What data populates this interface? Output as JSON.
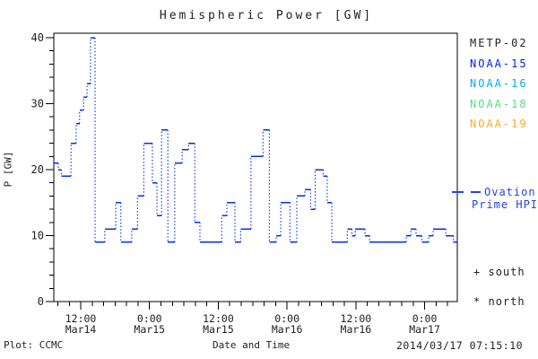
{
  "title": "Hemispheric Power [GW]",
  "colors": {
    "line": "#0033e6",
    "axis": "#000000",
    "text": "#222222",
    "ovation": "#2244dd"
  },
  "y_axis": {
    "label": "P [GW]",
    "ticks": [
      0,
      10,
      20,
      30,
      40
    ],
    "minor_step": 2,
    "range": [
      0,
      40
    ]
  },
  "x_axis": {
    "label": "Date and Time",
    "minor_step_hours": 2,
    "major_ticks": [
      {
        "hour": 12,
        "time": "12:00",
        "date": "Mar14"
      },
      {
        "hour": 24,
        "time": "0:00",
        "date": "Mar15"
      },
      {
        "hour": 36,
        "time": "12:00",
        "date": "Mar15"
      },
      {
        "hour": 48,
        "time": "0:00",
        "date": "Mar16"
      },
      {
        "hour": 60,
        "time": "12:00",
        "date": "Mar16"
      },
      {
        "hour": 72,
        "time": "0:00",
        "date": "Mar17"
      }
    ]
  },
  "legend": {
    "satellites": [
      {
        "label": "METP-02",
        "color": "#222222"
      },
      {
        "label": "NOAA-15",
        "color": "#0022ee"
      },
      {
        "label": "NOAA-16",
        "color": "#00aaff"
      },
      {
        "label": "NOAA-18",
        "color": "#55dd88"
      },
      {
        "label": "NOAA-19",
        "color": "#ffaa22"
      }
    ],
    "ovation": {
      "line1": "Ovation",
      "line2": "Prime HPI"
    },
    "hemisphere_markers": [
      {
        "symbol": "+",
        "label": "south"
      },
      {
        "symbol": "*",
        "label": "north"
      }
    ]
  },
  "footer": {
    "source": "Plot: CCMC",
    "xlabel": "Date and Time",
    "timestamp": "2014/03/17 07:15:10"
  },
  "chart_data": {
    "type": "line",
    "subtype": "step-histogram",
    "title": "Hemispheric Power [GW]",
    "xlabel": "Date and Time",
    "ylabel": "P [GW]",
    "ylim": [
      0,
      40
    ],
    "xlim_hours": [
      7.3,
      77.7
    ],
    "t_unit": "hours since 2014-03-14 00:00 UT",
    "grid": false,
    "legend_position": "right-outside",
    "series": [
      {
        "name": "NOAA-15 Hemispheric Power (Ovation Prime HPI)",
        "unit": "GW",
        "color": "#0033e6",
        "segments": [
          [
            7.3,
            8.1,
            21
          ],
          [
            8.1,
            8.6,
            20
          ],
          [
            8.6,
            10.3,
            19
          ],
          [
            10.3,
            11.2,
            24
          ],
          [
            11.2,
            11.8,
            27
          ],
          [
            11.8,
            12.5,
            29
          ],
          [
            12.5,
            13.1,
            31
          ],
          [
            13.1,
            13.7,
            33
          ],
          [
            13.7,
            14.5,
            40
          ],
          [
            14.5,
            16.2,
            9
          ],
          [
            16.2,
            18.1,
            11
          ],
          [
            18.1,
            19.0,
            15
          ],
          [
            19.0,
            20.9,
            9
          ],
          [
            20.9,
            21.9,
            11
          ],
          [
            21.9,
            23.0,
            16
          ],
          [
            23.0,
            24.5,
            24
          ],
          [
            24.5,
            25.3,
            18
          ],
          [
            25.3,
            26.1,
            13
          ],
          [
            26.1,
            27.2,
            26
          ],
          [
            27.2,
            28.4,
            9
          ],
          [
            28.4,
            29.7,
            21
          ],
          [
            29.7,
            30.8,
            23
          ],
          [
            30.8,
            31.9,
            24
          ],
          [
            31.9,
            32.8,
            12
          ],
          [
            32.8,
            36.6,
            9
          ],
          [
            36.6,
            37.5,
            13
          ],
          [
            37.5,
            38.9,
            15
          ],
          [
            38.9,
            39.9,
            9
          ],
          [
            39.9,
            41.7,
            11
          ],
          [
            41.7,
            43.8,
            22
          ],
          [
            43.8,
            44.9,
            26
          ],
          [
            44.9,
            46.1,
            9
          ],
          [
            46.1,
            46.9,
            10
          ],
          [
            46.9,
            48.5,
            15
          ],
          [
            48.5,
            49.7,
            9
          ],
          [
            49.7,
            51.1,
            16
          ],
          [
            51.1,
            52.1,
            17
          ],
          [
            52.1,
            52.9,
            14
          ],
          [
            52.9,
            54.3,
            20
          ],
          [
            54.3,
            55.0,
            19
          ],
          [
            55.0,
            55.8,
            15
          ],
          [
            55.8,
            58.5,
            9
          ],
          [
            58.5,
            59.3,
            11
          ],
          [
            59.3,
            59.9,
            10
          ],
          [
            59.9,
            61.6,
            11
          ],
          [
            61.6,
            62.4,
            10
          ],
          [
            62.4,
            68.8,
            9
          ],
          [
            68.8,
            69.6,
            10
          ],
          [
            69.6,
            70.5,
            11
          ],
          [
            70.5,
            71.5,
            10
          ],
          [
            71.5,
            72.7,
            9
          ],
          [
            72.7,
            73.5,
            10
          ],
          [
            73.5,
            75.7,
            11
          ],
          [
            75.7,
            77.0,
            10
          ],
          [
            77.0,
            77.7,
            9
          ]
        ]
      }
    ]
  }
}
